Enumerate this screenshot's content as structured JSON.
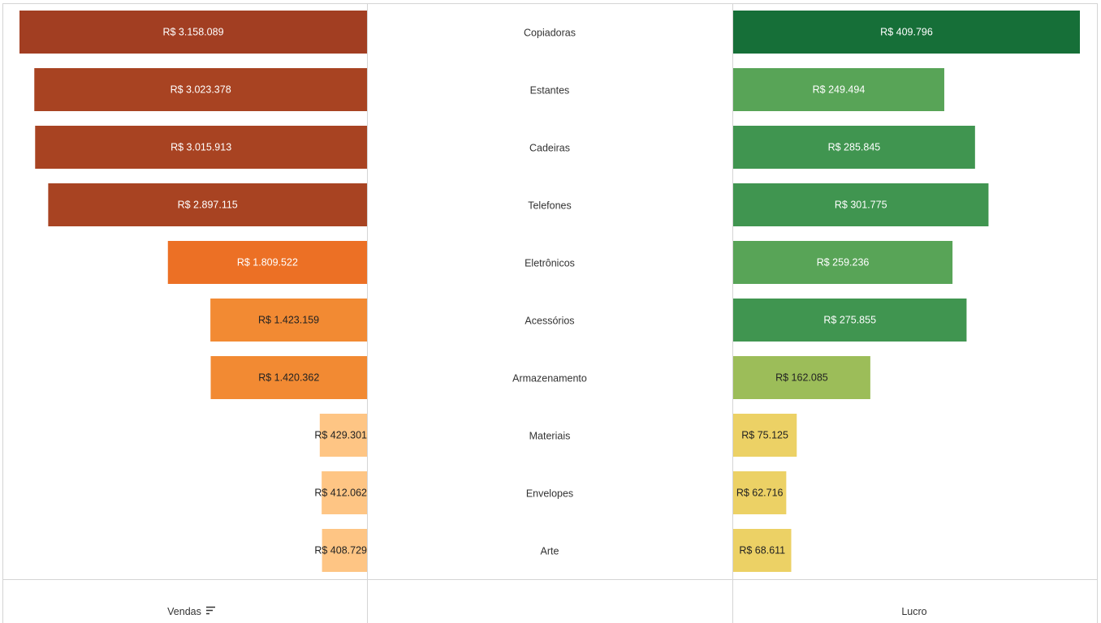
{
  "chart_data": {
    "type": "bar",
    "categories": [
      "Copiadoras",
      "Estantes",
      "Cadeiras",
      "Telefones",
      "Eletrônicos",
      "Acessórios",
      "Armazenamento",
      "Materiais",
      "Envelopes",
      "Arte"
    ],
    "series": [
      {
        "name": "Vendas",
        "values": [
          3158089,
          3023378,
          3015913,
          2897115,
          1809522,
          1423159,
          1420362,
          429301,
          412062,
          408729
        ],
        "labels": [
          "R$ 3.158.089",
          "R$ 3.023.378",
          "R$ 3.015.913",
          "R$ 2.897.115",
          "R$ 1.809.522",
          "R$ 1.423.159",
          "R$ 1.420.362",
          "R$ 429.301",
          "R$ 412.062",
          "R$ 408.729"
        ],
        "colors": [
          "#a23e22",
          "#a84322",
          "#a84322",
          "#a84322",
          "#ec7025",
          "#f28a33",
          "#f28a33",
          "#fec584",
          "#fec584",
          "#fec584"
        ],
        "label_colors": [
          "#ffffff",
          "#ffffff",
          "#ffffff",
          "#ffffff",
          "#ffffff",
          "#222222",
          "#222222",
          "#222222",
          "#222222",
          "#222222"
        ]
      },
      {
        "name": "Lucro",
        "values": [
          409796,
          249494,
          285845,
          301775,
          259236,
          275855,
          162085,
          75125,
          62716,
          68611
        ],
        "labels": [
          "R$ 409.796",
          "R$ 249.494",
          "R$ 285.845",
          "R$ 301.775",
          "R$ 259.236",
          "R$ 275.855",
          "R$ 162.085",
          "R$ 75.125",
          "R$ 62.716",
          "R$ 68.611"
        ],
        "colors": [
          "#166f38",
          "#58a457",
          "#409550",
          "#409550",
          "#58a457",
          "#409550",
          "#9cbd59",
          "#ecd165",
          "#ecd165",
          "#ecd165"
        ],
        "label_colors": [
          "#ffffff",
          "#ffffff",
          "#ffffff",
          "#ffffff",
          "#ffffff",
          "#ffffff",
          "#222222",
          "#222222",
          "#222222",
          "#222222"
        ]
      }
    ],
    "xlabel_left": "Vendas",
    "xlabel_right": "Lucro",
    "sort_icon": "sort-descending-icon",
    "grid": false
  }
}
